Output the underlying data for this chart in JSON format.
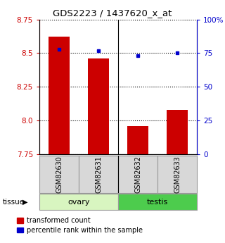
{
  "title": "GDS2223 / 1437620_x_at",
  "samples": [
    "GSM82630",
    "GSM82631",
    "GSM82632",
    "GSM82633"
  ],
  "transformed_counts": [
    8.62,
    8.46,
    7.96,
    8.08
  ],
  "percentile_ranks": [
    78,
    77,
    73,
    75
  ],
  "ylim_left": [
    7.75,
    8.75
  ],
  "ylim_right": [
    0,
    100
  ],
  "yticks_left": [
    7.75,
    8.0,
    8.25,
    8.5,
    8.75
  ],
  "yticks_right": [
    0,
    25,
    50,
    75,
    100
  ],
  "ytick_labels_right": [
    "0",
    "25",
    "50",
    "75",
    "100%"
  ],
  "tissue_labels": [
    "ovary",
    "testis"
  ],
  "tissue_groups": [
    2,
    2
  ],
  "tissue_colors_light": "#d8f5c0",
  "tissue_colors_dark": "#4dcc4d",
  "bar_color": "#cc0000",
  "dot_color": "#0000cc",
  "bg_color": "#d8d8d8",
  "legend_items": [
    "transformed count",
    "percentile rank within the sample"
  ]
}
